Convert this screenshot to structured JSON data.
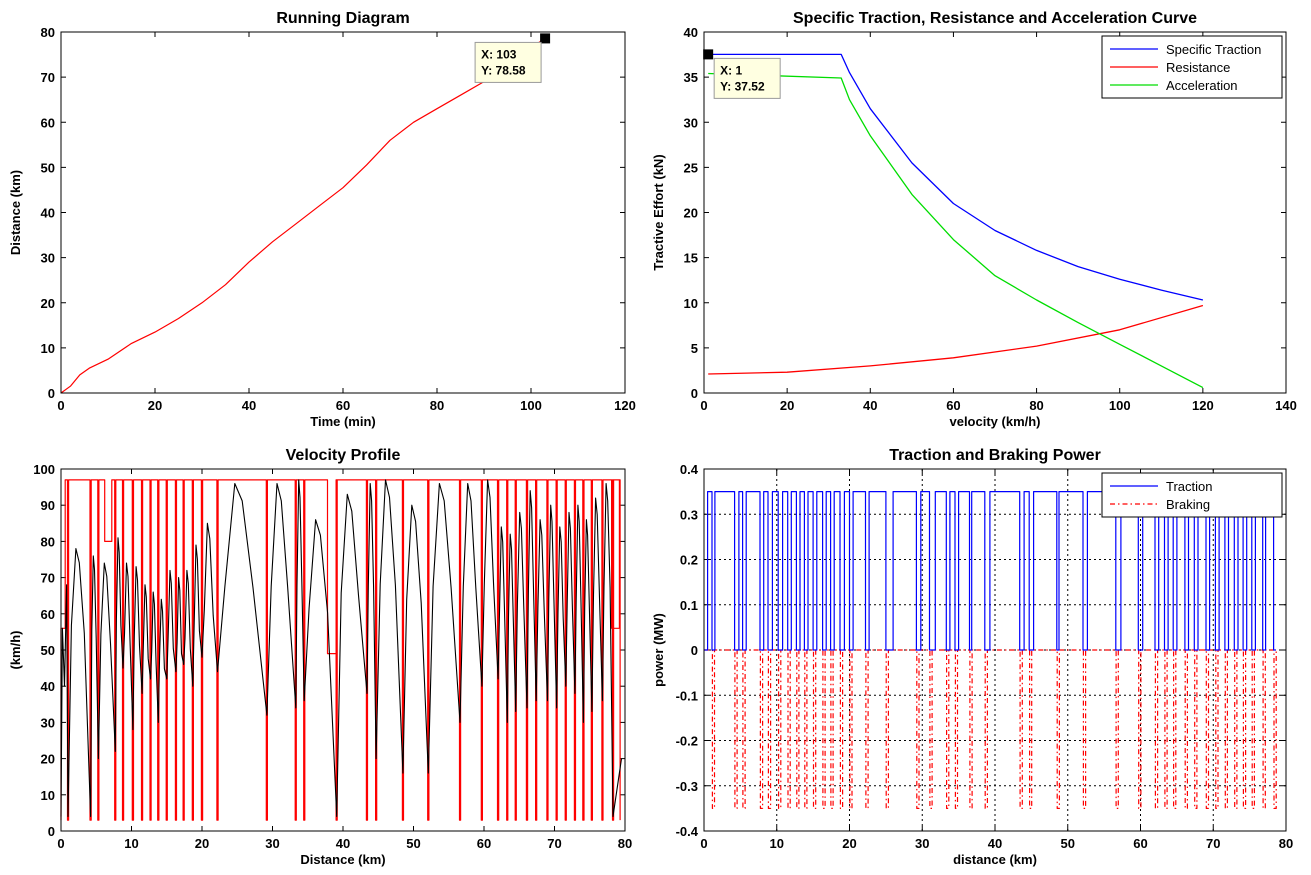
{
  "chart_data": [
    {
      "id": "running",
      "type": "line",
      "title": "Running Diagram",
      "xlabel": "Time (min)",
      "ylabel": "Distance (km)",
      "xlim": [
        0,
        120
      ],
      "ylim": [
        0,
        80
      ],
      "xticks": [
        0,
        20,
        40,
        60,
        80,
        100,
        120
      ],
      "yticks": [
        0,
        10,
        20,
        30,
        40,
        50,
        60,
        70,
        80
      ],
      "grid": false,
      "series": [
        {
          "color": "#ff0000",
          "x": [
            0,
            2,
            4,
            6,
            10,
            15,
            20,
            25,
            30,
            35,
            40,
            45,
            50,
            55,
            60,
            65,
            70,
            75,
            80,
            85,
            90,
            95,
            100,
            103
          ],
          "y": [
            0,
            1.5,
            4,
            5.5,
            7.5,
            11,
            13.5,
            16.5,
            20,
            24,
            29,
            33.5,
            37.5,
            41.5,
            45.5,
            50.5,
            56,
            60,
            63,
            66,
            69,
            72.5,
            76.5,
            78.58
          ]
        }
      ],
      "datatip": {
        "x": 103,
        "y": 78.58,
        "line1": "X: 103",
        "line2": "Y: 78.58"
      }
    },
    {
      "id": "traction",
      "type": "line",
      "title": "Specific Traction, Resistance and Acceleration Curve",
      "xlabel": "velocity (km/h)",
      "ylabel": "Tractive Effort (kN)",
      "xlim": [
        0,
        140
      ],
      "ylim": [
        0,
        40
      ],
      "xticks": [
        0,
        20,
        40,
        60,
        80,
        100,
        120,
        140
      ],
      "yticks": [
        0,
        5,
        10,
        15,
        20,
        25,
        30,
        35,
        40
      ],
      "grid": false,
      "legend": "top-right",
      "series": [
        {
          "name": "Specific Traction",
          "color": "#0000ff",
          "x": [
            1,
            33,
            35,
            40,
            50,
            60,
            70,
            80,
            90,
            100,
            110,
            120
          ],
          "y": [
            37.52,
            37.52,
            35.5,
            31.5,
            25.5,
            21,
            18,
            15.8,
            14,
            12.6,
            11.4,
            10.3
          ]
        },
        {
          "name": "Resistance",
          "color": "#ff0000",
          "x": [
            1,
            20,
            40,
            60,
            80,
            100,
            120
          ],
          "y": [
            2.1,
            2.3,
            3.0,
            3.9,
            5.2,
            7.0,
            9.7
          ]
        },
        {
          "name": "Acceleration",
          "color": "#00dd00",
          "x": [
            1,
            33,
            35,
            40,
            50,
            60,
            70,
            80,
            90,
            100,
            110,
            120
          ],
          "y": [
            35.4,
            34.9,
            32.5,
            28.5,
            22,
            17,
            13,
            10.3,
            7.8,
            5.4,
            3.0,
            0.6
          ]
        }
      ],
      "datatip": {
        "x": 1,
        "y": 37.52,
        "line1": "X: 1",
        "line2": "Y: 37.52"
      }
    },
    {
      "id": "velocity",
      "type": "line",
      "title": "Velocity Profile",
      "xlabel": "Distance (km)",
      "ylabel": "(km/h)",
      "xlim": [
        0,
        80
      ],
      "ylim": [
        0,
        100
      ],
      "xticks": [
        0,
        10,
        20,
        30,
        40,
        50,
        60,
        70,
        80
      ],
      "yticks": [
        0,
        10,
        20,
        30,
        40,
        50,
        60,
        70,
        80,
        90,
        100
      ],
      "grid": false,
      "limit_value": 97,
      "dip_value": 3,
      "stops": [
        1,
        4.2,
        5.3,
        7.7,
        8.8,
        10.2,
        11.5,
        12.7,
        13.8,
        15,
        16.3,
        17.4,
        18.7,
        20,
        22.2,
        29.2,
        33.3,
        34.5,
        39.1,
        43.4,
        44.7,
        48.5,
        52.1,
        56.6,
        59.7,
        62,
        63.3,
        64.5,
        66.1,
        67.4,
        69,
        70.3,
        71.6,
        72.9,
        74.1,
        75.3,
        76.8,
        78.3
      ],
      "peaks": [
        78,
        76,
        74,
        81,
        74,
        73,
        68,
        66,
        64,
        72,
        70,
        72,
        79,
        85,
        96,
        96,
        97,
        86,
        93,
        96,
        97,
        90,
        96,
        96,
        97,
        84,
        82,
        88,
        94,
        86,
        90,
        84,
        88,
        90,
        86,
        92,
        96,
        96
      ],
      "troughs": [
        4,
        20,
        22,
        45,
        28,
        38,
        42,
        30,
        42,
        44,
        46,
        40,
        48,
        44,
        32,
        34,
        36,
        3,
        38,
        20,
        16,
        16,
        30,
        40,
        42,
        30,
        33,
        34,
        36,
        36,
        34,
        40,
        38,
        30,
        33,
        36,
        3,
        20
      ],
      "slow_zones": [
        {
          "x0": 6.2,
          "x1": 7.2,
          "v": 80
        },
        {
          "x0": 37.8,
          "x1": 39.1,
          "v": 49
        },
        {
          "x0": 78.1,
          "x1": 79.2,
          "v": 56
        }
      ]
    },
    {
      "id": "power",
      "type": "line",
      "title": "Traction and Braking Power",
      "xlabel": "distance (km)",
      "ylabel": "power (MW)",
      "xlim": [
        0,
        80
      ],
      "ylim": [
        -0.4,
        0.4
      ],
      "xticks": [
        0,
        10,
        20,
        30,
        40,
        50,
        60,
        70,
        80
      ],
      "yticks": [
        -0.4,
        -0.3,
        -0.2,
        -0.1,
        0,
        0.1,
        0.2,
        0.3,
        0.4
      ],
      "grid": true,
      "legend": "top-right",
      "series": [
        {
          "name": "Traction",
          "color": "#0000ff",
          "level": 0.35
        },
        {
          "name": "Braking",
          "color": "#ff0000",
          "level": -0.35
        }
      ],
      "pulses": [
        [
          0.5,
          1.1
        ],
        [
          1.5,
          4.2
        ],
        [
          4.8,
          5.3
        ],
        [
          5.8,
          7.7
        ],
        [
          8.2,
          8.8
        ],
        [
          9.4,
          10.2
        ],
        [
          10.8,
          11.5
        ],
        [
          12.0,
          12.7
        ],
        [
          13.2,
          13.8
        ],
        [
          14.3,
          15.0
        ],
        [
          15.5,
          16.3
        ],
        [
          16.8,
          17.4
        ],
        [
          17.9,
          18.7
        ],
        [
          19.3,
          20.0
        ],
        [
          20.5,
          22.2
        ],
        [
          22.7,
          25.0
        ],
        [
          26.0,
          29.2
        ],
        [
          29.8,
          31.0
        ],
        [
          31.8,
          33.3
        ],
        [
          33.8,
          34.5
        ],
        [
          35.0,
          36.5
        ],
        [
          36.8,
          38.6
        ],
        [
          39.3,
          43.4
        ],
        [
          44.0,
          44.7
        ],
        [
          45.3,
          48.5
        ],
        [
          48.8,
          52.1
        ],
        [
          52.7,
          56.6
        ],
        [
          57.3,
          59.7
        ],
        [
          60.3,
          62.0
        ],
        [
          62.5,
          63.3
        ],
        [
          63.8,
          64.5
        ],
        [
          65.0,
          66.1
        ],
        [
          66.6,
          67.4
        ],
        [
          67.9,
          69.0
        ],
        [
          69.5,
          70.3
        ],
        [
          70.8,
          71.6
        ],
        [
          72.1,
          72.9
        ],
        [
          73.4,
          74.1
        ],
        [
          74.6,
          75.3
        ],
        [
          75.8,
          76.8
        ],
        [
          77.2,
          78.3
        ]
      ]
    }
  ]
}
